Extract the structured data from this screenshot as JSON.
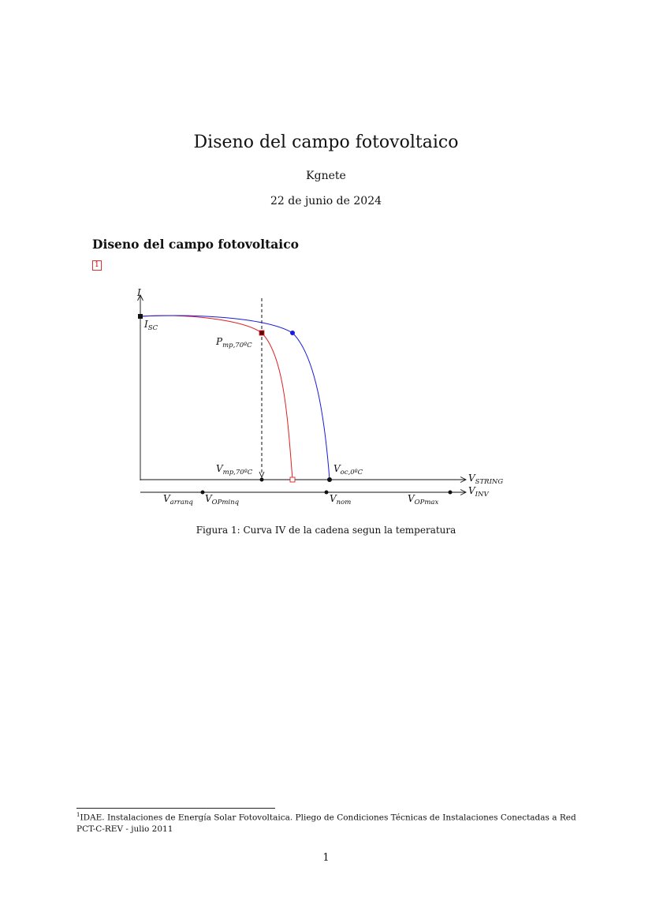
{
  "document": {
    "title": "Diseno del campo fotovoltaico",
    "author": "Kgnete",
    "date": "22 de junio de 2024",
    "section_title": "Diseno del campo fotovoltaico",
    "footnote_mark": "1",
    "caption": "Figura 1: Curva IV de la cadena segun la temperatura",
    "footnote_number": "1",
    "footnote_text": "IDAE. Instalaciones de Energía Solar Fotovoltaica. Pliego de Condiciones Técnicas de Instalaciones Conectadas a Red PCT-C-REV - julio 2011",
    "page_number": "1"
  },
  "figure": {
    "labels": {
      "y_axis": {
        "main": "I",
        "sub": ""
      },
      "isc": {
        "main": "I",
        "sub": "SC"
      },
      "pmp": {
        "main": "P",
        "sub": "mp,70ºC"
      },
      "vmp": {
        "main": "V",
        "sub": "mp,70ºC"
      },
      "voc": {
        "main": "V",
        "sub": "oc,0ºC"
      },
      "vstring": {
        "main": "V",
        "sub": "STRING"
      },
      "vinv": {
        "main": "V",
        "sub": "INV"
      },
      "varranq": {
        "main": "V",
        "sub": "arranq"
      },
      "vopminq": {
        "main": "V",
        "sub": "OPminq"
      },
      "vnom": {
        "main": "V",
        "sub": "nom"
      },
      "vopmax": {
        "main": "V",
        "sub": "OPmax"
      }
    },
    "colors": {
      "hot_curve": "#e02020",
      "cold_curve": "#1a1adc",
      "axes": "#111111"
    }
  }
}
